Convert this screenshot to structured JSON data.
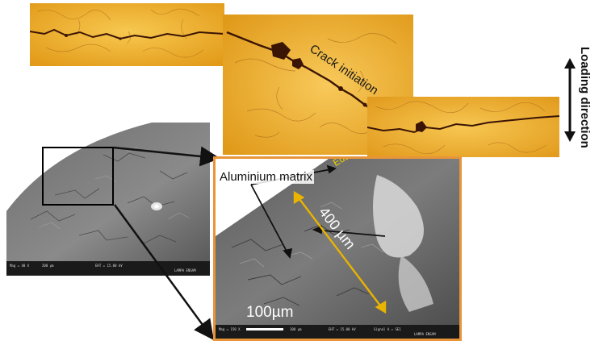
{
  "labels": {
    "crack_initiation": "Crack initiation",
    "loading_direction": "Loading direction",
    "aluminium_matrix": "Aluminium matrix",
    "eutectic_zones": "Eutectic zones",
    "measure_400": "400 µm",
    "scale_100": "100µm"
  },
  "sem_overview_bar": {
    "left_text": "Mag = 40 X",
    "scale_text": "200 µm",
    "center_text": "EHT = 15.00 kV",
    "right_text": "LAMPA ENSAM"
  },
  "sem_zoom_bar": {
    "left_text": "Mag = 150 X",
    "scale_text": "100 µm",
    "center_text": "EHT = 15.00 kV",
    "signal_text": "Signal A = SE1",
    "right_text": "LAMPA ENSAM"
  },
  "colors": {
    "optical_bg": "#f0b22a",
    "crack": "#3a1405",
    "frame_orange": "#e8953a",
    "annotation_yellow": "#e8b400",
    "arrow_black": "#111111"
  }
}
